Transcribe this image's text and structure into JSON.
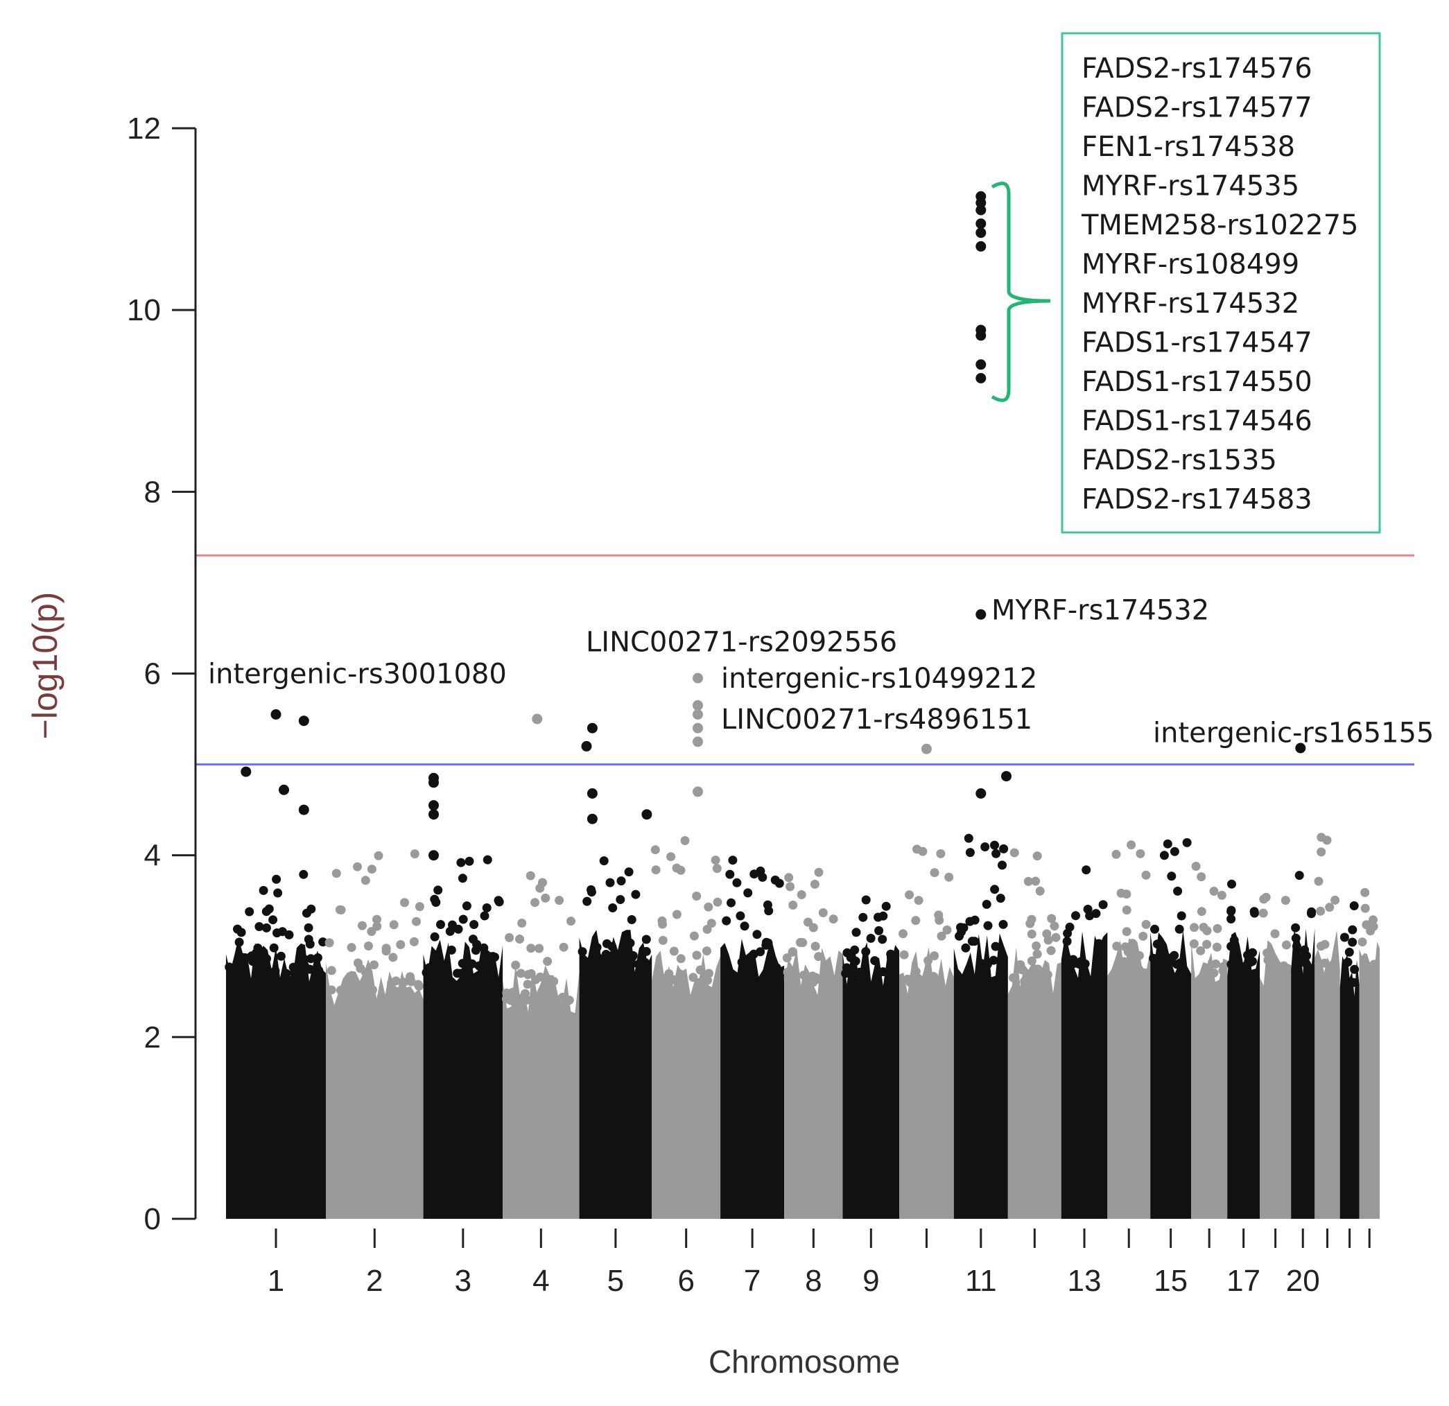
{
  "chart_data": {
    "type": "scatter",
    "subtype": "manhattan",
    "title": "",
    "xlabel": "Chromosome",
    "ylabel": "−log10(p)",
    "ylim": [
      0,
      12
    ],
    "yticks": [
      0,
      2,
      4,
      6,
      8,
      10,
      12
    ],
    "chromosome_ticks": [
      "1",
      "2",
      "3",
      "4",
      "5",
      "6",
      "7",
      "8",
      "9",
      "",
      "11",
      "",
      "13",
      "",
      "15",
      "",
      "17",
      "",
      "20",
      "",
      ""
    ],
    "colors": {
      "odd": "#111111",
      "even": "#9a9a9a",
      "genome_wide_line": "#f08080",
      "suggestive_line": "#6b6bff",
      "bracket": "#22b573",
      "legend_border": "#3cc896"
    },
    "thresholds": {
      "genome_wide": 7.3,
      "suggestive": 5.0
    },
    "chromosomes": [
      {
        "chr": 1,
        "size": 249,
        "base": 2.9,
        "max": 3.8
      },
      {
        "chr": 2,
        "size": 243,
        "base": 2.7,
        "max": 4.1
      },
      {
        "chr": 3,
        "size": 198,
        "base": 2.9,
        "max": 4.0
      },
      {
        "chr": 4,
        "size": 191,
        "base": 2.6,
        "max": 3.9
      },
      {
        "chr": 5,
        "size": 181,
        "base": 3.0,
        "max": 4.0
      },
      {
        "chr": 6,
        "size": 171,
        "base": 2.8,
        "max": 4.2
      },
      {
        "chr": 7,
        "size": 159,
        "base": 2.9,
        "max": 4.0
      },
      {
        "chr": 8,
        "size": 146,
        "base": 2.8,
        "max": 4.0
      },
      {
        "chr": 9,
        "size": 141,
        "base": 2.9,
        "max": 3.6
      },
      {
        "chr": 10,
        "size": 136,
        "base": 2.8,
        "max": 4.3
      },
      {
        "chr": 11,
        "size": 135,
        "base": 3.0,
        "max": 4.2
      },
      {
        "chr": 12,
        "size": 133,
        "base": 2.8,
        "max": 4.3
      },
      {
        "chr": 13,
        "size": 115,
        "base": 3.0,
        "max": 4.1
      },
      {
        "chr": 14,
        "size": 107,
        "base": 2.9,
        "max": 4.5
      },
      {
        "chr": 15,
        "size": 102,
        "base": 3.0,
        "max": 4.3
      },
      {
        "chr": 16,
        "size": 90,
        "base": 2.9,
        "max": 4.1
      },
      {
        "chr": 17,
        "size": 81,
        "base": 3.0,
        "max": 3.8
      },
      {
        "chr": 18,
        "size": 78,
        "base": 2.9,
        "max": 3.9
      },
      {
        "chr": 19,
        "size": 59,
        "base": 3.0,
        "max": 3.9
      },
      {
        "chr": 20,
        "size": 63,
        "base": 3.0,
        "max": 4.2
      },
      {
        "chr": 21,
        "size": 48,
        "base": 2.8,
        "max": 3.7
      },
      {
        "chr": 22,
        "size": 51,
        "base": 2.9,
        "max": 3.6
      }
    ],
    "highlight_points": [
      {
        "chr": 1,
        "pos": 0.2,
        "y": 4.92
      },
      {
        "chr": 1,
        "pos": 0.5,
        "y": 5.55
      },
      {
        "chr": 1,
        "pos": 0.58,
        "y": 4.72
      },
      {
        "chr": 1,
        "pos": 0.78,
        "y": 5.48
      },
      {
        "chr": 1,
        "pos": 0.78,
        "y": 4.5
      },
      {
        "chr": 3,
        "pos": 0.13,
        "y": 4.85
      },
      {
        "chr": 3,
        "pos": 0.13,
        "y": 4.8
      },
      {
        "chr": 3,
        "pos": 0.13,
        "y": 4.55
      },
      {
        "chr": 3,
        "pos": 0.13,
        "y": 4.45
      },
      {
        "chr": 3,
        "pos": 0.13,
        "y": 4.0
      },
      {
        "chr": 4,
        "pos": 0.45,
        "y": 5.5
      },
      {
        "chr": 5,
        "pos": 0.1,
        "y": 5.2
      },
      {
        "chr": 5,
        "pos": 0.18,
        "y": 5.4
      },
      {
        "chr": 5,
        "pos": 0.18,
        "y": 4.68
      },
      {
        "chr": 5,
        "pos": 0.18,
        "y": 4.4
      },
      {
        "chr": 5,
        "pos": 0.93,
        "y": 4.45
      },
      {
        "chr": 6,
        "pos": 0.67,
        "y": 5.95
      },
      {
        "chr": 6,
        "pos": 0.67,
        "y": 5.65
      },
      {
        "chr": 6,
        "pos": 0.67,
        "y": 5.55
      },
      {
        "chr": 6,
        "pos": 0.67,
        "y": 5.4
      },
      {
        "chr": 6,
        "pos": 0.67,
        "y": 5.25
      },
      {
        "chr": 6,
        "pos": 0.67,
        "y": 4.7
      },
      {
        "chr": 10,
        "pos": 0.5,
        "y": 5.17
      },
      {
        "chr": 11,
        "pos": 0.5,
        "y": 11.25
      },
      {
        "chr": 11,
        "pos": 0.5,
        "y": 11.18
      },
      {
        "chr": 11,
        "pos": 0.5,
        "y": 11.1
      },
      {
        "chr": 11,
        "pos": 0.5,
        "y": 10.95
      },
      {
        "chr": 11,
        "pos": 0.5,
        "y": 10.85
      },
      {
        "chr": 11,
        "pos": 0.5,
        "y": 10.7
      },
      {
        "chr": 11,
        "pos": 0.5,
        "y": 9.78
      },
      {
        "chr": 11,
        "pos": 0.5,
        "y": 9.72
      },
      {
        "chr": 11,
        "pos": 0.5,
        "y": 9.4
      },
      {
        "chr": 11,
        "pos": 0.5,
        "y": 9.25
      },
      {
        "chr": 11,
        "pos": 0.5,
        "y": 6.65
      },
      {
        "chr": 11,
        "pos": 0.5,
        "y": 4.68
      },
      {
        "chr": 11,
        "pos": 0.97,
        "y": 4.87
      },
      {
        "chr": 19,
        "pos": 0.4,
        "y": 5.18
      }
    ],
    "annotations": [
      {
        "text": "intergenic-rs3001080",
        "x": 300,
        "y": 6.0
      },
      {
        "text": "LINC00271-rs2092556",
        "x": 845,
        "y": 6.35
      },
      {
        "text": "intergenic-rs10499212",
        "x": 1040,
        "y": 5.95
      },
      {
        "text": "LINC00271-rs4896151",
        "x": 1040,
        "y": 5.5
      },
      {
        "text": "MYRF-rs174532",
        "x": 1430,
        "y": 6.7
      },
      {
        "text": "intergenic-rs165155",
        "x": 1663,
        "y": 5.35
      }
    ],
    "legend": {
      "placement": "top-right",
      "entries": [
        "FADS2-rs174576",
        "FADS2-rs174577",
        "FEN1-rs174538",
        "MYRF-rs174535",
        "TMEM258-rs102275",
        "MYRF-rs108499",
        "MYRF-rs174532",
        "FADS1-rs174547",
        "FADS1-rs174550",
        "FADS1-rs174546",
        "FADS2-rs1535",
        "FADS2-rs174583"
      ]
    }
  }
}
